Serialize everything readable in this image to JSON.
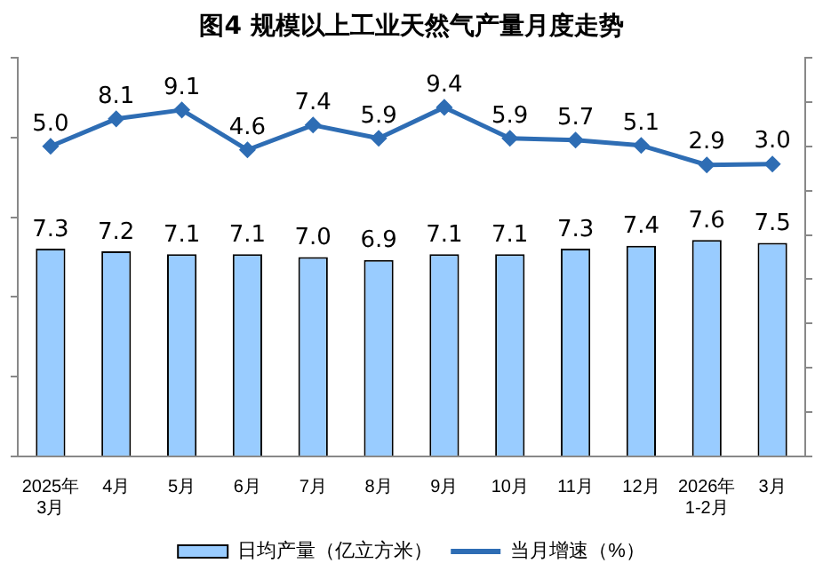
{
  "chart_data": {
    "type": "bar",
    "title": "图4  规模以上工业天然气产量月度走势",
    "categories": [
      "2025年\n3月",
      "4月",
      "5月",
      "6月",
      "7月",
      "8月",
      "9月",
      "10月",
      "11月",
      "12月",
      "2026年\n1-2月",
      "3月"
    ],
    "series": [
      {
        "name": "日均产量（亿立方米）",
        "color": "#99ccff",
        "values": [
          7.3,
          7.2,
          7.1,
          7.1,
          7.0,
          6.9,
          7.1,
          7.1,
          7.3,
          7.4,
          7.6,
          7.5
        ],
        "value_labels": [
          "7.3",
          "7.2",
          "7.1",
          "7.1",
          "7.0",
          "6.9",
          "7.1",
          "7.1",
          "7.3",
          "7.4",
          "7.6",
          "7.5"
        ]
      },
      {
        "name": "当月增速（%）",
        "type": "line",
        "axis": "y2",
        "color": "#2e6db4",
        "marker": "diamond",
        "values": [
          5.0,
          8.1,
          9.1,
          4.6,
          7.4,
          5.9,
          9.4,
          5.9,
          5.7,
          5.1,
          2.9,
          3.0
        ],
        "value_labels": [
          "5.0",
          "8.1",
          "9.1",
          "4.6",
          "7.4",
          "5.9",
          "9.4",
          "5.9",
          "5.7",
          "5.1",
          "2.9",
          "3.0"
        ]
      }
    ],
    "ylim": [
      0,
      14
    ],
    "yticks": [
      {
        "value": 0,
        "label": null
      },
      {
        "value": 2.8,
        "label": null
      },
      {
        "value": 5.6,
        "label": null
      },
      {
        "value": 8.4,
        "label": null
      },
      {
        "value": 11.2,
        "label": null
      },
      {
        "value": 14,
        "label": null
      }
    ],
    "y2lim": [
      -30,
      15
    ],
    "y2ticks": [
      {
        "value": -30,
        "label": null
      },
      {
        "value": -25,
        "label": null
      },
      {
        "value": -20,
        "label": null
      },
      {
        "value": -15,
        "label": null
      },
      {
        "value": -10,
        "label": null
      },
      {
        "value": -5,
        "label": null
      },
      {
        "value": 0,
        "label": null
      },
      {
        "value": 5,
        "label": null
      },
      {
        "value": 10,
        "label": null
      },
      {
        "value": 15,
        "label": null
      }
    ],
    "tick_labels": "x",
    "legend": "bottom"
  }
}
